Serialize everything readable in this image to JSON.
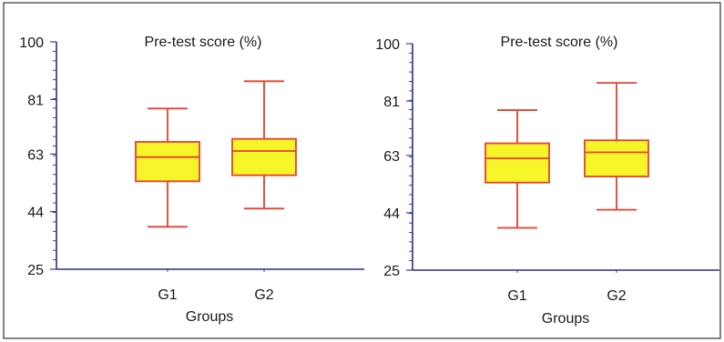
{
  "chart_data": [
    {
      "type": "box",
      "title": "Pre-test score (%)",
      "xlabel": "Groups",
      "ylabel": "",
      "ylim": [
        25,
        100
      ],
      "yticks": [
        25,
        44,
        63,
        81,
        100
      ],
      "yticks_labels": [
        "25",
        "44",
        "63",
        "81",
        "100"
      ],
      "categories": [
        "G1",
        "G2"
      ],
      "boxes": [
        {
          "min": 39,
          "q1": 54,
          "median": 62,
          "q3": 67,
          "max": 78
        },
        {
          "min": 45,
          "q1": 56,
          "median": 64,
          "q3": 68,
          "max": 87
        }
      ],
      "grid": false,
      "box_fill": "#f5f52a",
      "box_stroke": "#e8402a"
    },
    {
      "type": "box",
      "title": "Pre-test score (%)",
      "xlabel": "Groups",
      "ylabel": "",
      "ylim": [
        25,
        100
      ],
      "yticks": [
        25,
        44,
        63,
        81,
        100
      ],
      "yticks_labels": [
        "25",
        "44",
        "63",
        "81",
        "100"
      ],
      "categories": [
        "G1",
        "G2"
      ],
      "boxes": [
        {
          "min": 39,
          "q1": 54,
          "median": 62,
          "q3": 67,
          "max": 78
        },
        {
          "min": 45,
          "q1": 56,
          "median": 64,
          "q3": 68,
          "max": 87
        }
      ],
      "grid": false,
      "box_fill": "#f5f52a",
      "box_stroke": "#e8402a"
    }
  ]
}
